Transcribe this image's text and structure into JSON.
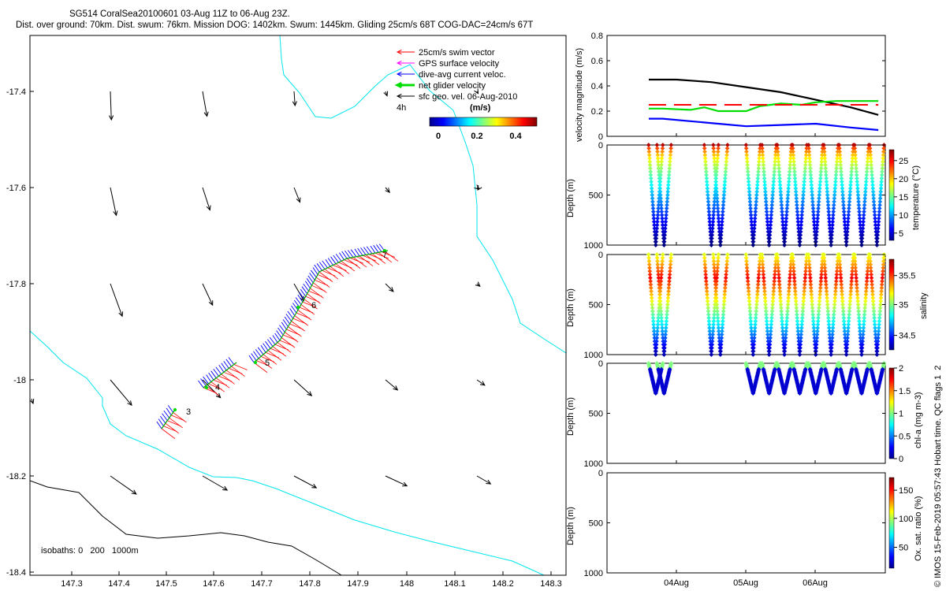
{
  "header": {
    "line1": "SG514 CoralSea20100601 03-Aug 11Z to 06-Aug 23Z.",
    "line2": "Dist. over ground: 70km. Dist. swum: 76km. Mission DOG: 1402km. Swum: 1445km. Gliding 25cm/s 68T COG-DAC=24cm/s 67T"
  },
  "map": {
    "legend": [
      {
        "label": "25cm/s swim vector",
        "color": "#ff0000"
      },
      {
        "label": "GPS surface velocity",
        "color": "#ff00ff"
      },
      {
        "label": "dive-avg current veloc.",
        "color": "#0000ff"
      },
      {
        "label": "net glider velocity",
        "color": "#00dd00"
      },
      {
        "label": "sfc geo. vel. 06-Aug-2010",
        "color": "#000000"
      }
    ],
    "scale_label": "4h",
    "colorbar_title": "(m/s)",
    "colorbar_ticks": [
      "0",
      "0.2",
      "0.4"
    ],
    "isobaths_label": "isobaths: 0   200   1000m",
    "x_ticks": [
      "147.3",
      "147.4",
      "147.5",
      "147.6",
      "147.7",
      "147.8",
      "147.9",
      "148",
      "148.1",
      "148.2",
      "148.3"
    ],
    "y_ticks": [
      "-17.4",
      "-17.6",
      "-17.8",
      "-18",
      "-18.2",
      "-18.4"
    ],
    "waypoints": [
      "3",
      "4",
      "5",
      "6",
      "7"
    ],
    "coast_color": "#00e5ee"
  },
  "panels": {
    "velocity": {
      "ylabel": "velocity magnitude (m/s)",
      "yticks": [
        "0",
        "0.2",
        "0.4",
        "0.6",
        "0.8"
      ]
    },
    "temperature": {
      "ylabel": "Depth (m)",
      "cbar_label": "temperature (°C)",
      "cbar_ticks": [
        "25",
        "20",
        "15",
        "10",
        "5"
      ],
      "yticks": [
        "0",
        "500",
        "1000"
      ]
    },
    "salinity": {
      "ylabel": "Depth (m)",
      "cbar_label": "salinity",
      "cbar_ticks": [
        "35.5",
        "35",
        "34.5"
      ],
      "yticks": [
        "0",
        "500",
        "1000"
      ]
    },
    "chla": {
      "ylabel": "Depth (m)",
      "cbar_label": "chl-a (mg m-3)",
      "cbar_ticks": [
        "2",
        "1.5",
        "1",
        "0.5",
        "0"
      ],
      "yticks": [
        "0",
        "500",
        "1000"
      ]
    },
    "oxygen": {
      "ylabel": "Depth (m)",
      "cbar_label": "Ox. sat. ratio (%)",
      "cbar_ticks": [
        "150",
        "100",
        "50"
      ],
      "yticks": [
        "0",
        "500",
        "1000"
      ]
    },
    "x_ticks": [
      "04Aug",
      "05Aug",
      "06Aug"
    ]
  },
  "side_note": "© IMOS 15-Feb-2019 05:57:43 Hobart time. QC flags 1  2",
  "chart_data": [
    {
      "type": "line",
      "title": "",
      "ylabel": "velocity magnitude (m/s)",
      "ylim": [
        0,
        0.8
      ],
      "series": [
        {
          "color": "#000000",
          "x": [
            3.6,
            4.0,
            4.5,
            5.0,
            5.5,
            6.0,
            6.5,
            6.9
          ],
          "values": [
            0.45,
            0.45,
            0.43,
            0.39,
            0.35,
            0.29,
            0.23,
            0.17
          ]
        },
        {
          "color": "#0000ff",
          "x": [
            3.6,
            3.8,
            4.2,
            4.6,
            5.0,
            5.5,
            6.0,
            6.5,
            6.9
          ],
          "values": [
            0.14,
            0.14,
            0.12,
            0.1,
            0.08,
            0.09,
            0.1,
            0.07,
            0.05
          ]
        },
        {
          "color": "#00dd00",
          "x": [
            3.6,
            3.8,
            4.2,
            4.4,
            4.6,
            5.0,
            5.2,
            5.5,
            5.8,
            6.0,
            6.3,
            6.5,
            6.9
          ],
          "values": [
            0.22,
            0.22,
            0.21,
            0.23,
            0.2,
            0.2,
            0.24,
            0.26,
            0.25,
            0.27,
            0.28,
            0.28,
            0.28
          ]
        },
        {
          "color": "#ff0000",
          "x": [
            3.6,
            3.8,
            4.5,
            4.9,
            5.2,
            5.5,
            6.0,
            6.5,
            6.9
          ],
          "values": [
            0.25,
            0.25,
            0.25,
            0.25,
            0.25,
            0.25,
            0.25,
            0.25,
            0.25
          ]
        }
      ]
    },
    {
      "type": "scatter",
      "ylabel": "Depth (m)",
      "ylim": [
        1000,
        0
      ],
      "colorbar": "temperature (°C)",
      "color_range": [
        3,
        28
      ],
      "dives_x": [
        3.7,
        3.82,
        4.5,
        4.63,
        5.1,
        5.33,
        5.55,
        5.77,
        6.0,
        6.22,
        6.44,
        6.66,
        6.88
      ],
      "dive_depth": 1000
    },
    {
      "type": "scatter",
      "ylabel": "Depth (m)",
      "ylim": [
        1000,
        0
      ],
      "colorbar": "salinity",
      "color_range": [
        34.3,
        35.9
      ],
      "dives_x": [
        3.7,
        3.82,
        4.5,
        4.63,
        5.1,
        5.33,
        5.55,
        5.77,
        6.0,
        6.22,
        6.44,
        6.66,
        6.88
      ],
      "dive_depth": 1000
    },
    {
      "type": "scatter",
      "ylabel": "Depth (m)",
      "ylim": [
        1000,
        0
      ],
      "colorbar": "chl-a (mg m-3)",
      "color_range": [
        0,
        2
      ],
      "dives_x": [
        3.7,
        3.82,
        5.1,
        5.33,
        5.55,
        5.77,
        6.0,
        6.22,
        6.44,
        6.66,
        6.88
      ],
      "dive_depth": 300
    }
  ]
}
